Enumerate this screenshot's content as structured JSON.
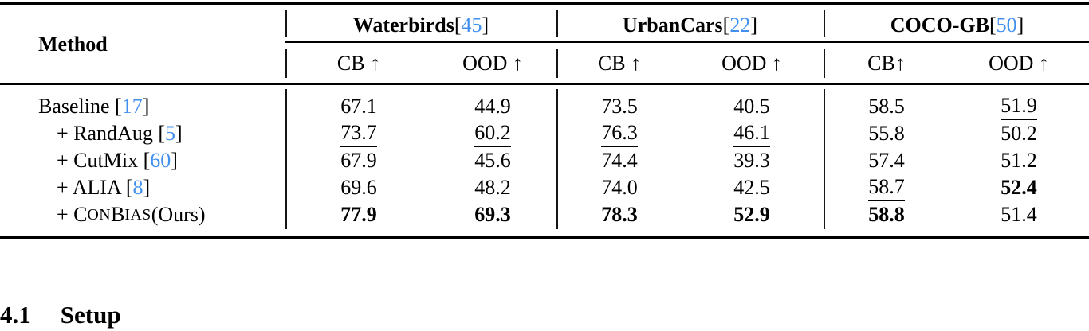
{
  "colors": {
    "cite": "#4190f0"
  },
  "table": {
    "header": {
      "method_label": "Method",
      "groups": [
        {
          "name": "Waterbirds",
          "cite": "45",
          "segments": [
            {
              "t": "Waterbirds ",
              "s": "bold"
            },
            {
              "t": "[",
              "s": "plain"
            },
            {
              "t": "45",
              "s": "cite"
            },
            {
              "t": "]",
              "s": "plain"
            }
          ]
        },
        {
          "name": "UrbanCars",
          "cite": "22",
          "segments": [
            {
              "t": "UrbanCars ",
              "s": "bold"
            },
            {
              "t": "[",
              "s": "plain"
            },
            {
              "t": "22",
              "s": "cite"
            },
            {
              "t": "]",
              "s": "plain"
            }
          ]
        },
        {
          "name": "COCO-GB",
          "cite": "50",
          "segments": [
            {
              "t": "COCO-GB ",
              "s": "bold"
            },
            {
              "t": "[",
              "s": "plain"
            },
            {
              "t": "50",
              "s": "cite"
            },
            {
              "t": "]",
              "s": "plain"
            }
          ]
        }
      ],
      "subheaders": [
        "CB ↑",
        "OOD ↑",
        "CB ↑",
        "OOD ↑",
        "CB↑",
        "OOD ↑"
      ]
    },
    "rows": [
      {
        "method": "Baseline [17]",
        "indent": false,
        "label_segments": [
          {
            "t": "Baseline [",
            "s": "plain"
          },
          {
            "t": "17",
            "s": "cite"
          },
          {
            "t": "]",
            "s": "plain"
          }
        ],
        "cells": [
          {
            "v": "67.1",
            "e": "none"
          },
          {
            "v": "44.9",
            "e": "none"
          },
          {
            "v": "73.5",
            "e": "none"
          },
          {
            "v": "40.5",
            "e": "none"
          },
          {
            "v": "58.5",
            "e": "none"
          },
          {
            "v": "51.9",
            "e": "underline"
          }
        ]
      },
      {
        "method": "+ RandAug [5]",
        "indent": true,
        "label_segments": [
          {
            "t": "+ RandAug [",
            "s": "plain"
          },
          {
            "t": "5",
            "s": "cite"
          },
          {
            "t": "]",
            "s": "plain"
          }
        ],
        "cells": [
          {
            "v": "73.7",
            "e": "underline"
          },
          {
            "v": "60.2",
            "e": "underline"
          },
          {
            "v": "76.3",
            "e": "underline"
          },
          {
            "v": "46.1",
            "e": "underline"
          },
          {
            "v": "55.8",
            "e": "none"
          },
          {
            "v": "50.2",
            "e": "none"
          }
        ]
      },
      {
        "method": "+ CutMix [60]",
        "indent": true,
        "label_segments": [
          {
            "t": "+ CutMix [",
            "s": "plain"
          },
          {
            "t": "60",
            "s": "cite"
          },
          {
            "t": "]",
            "s": "plain"
          }
        ],
        "cells": [
          {
            "v": "67.9",
            "e": "none"
          },
          {
            "v": "45.6",
            "e": "none"
          },
          {
            "v": "74.4",
            "e": "none"
          },
          {
            "v": "39.3",
            "e": "none"
          },
          {
            "v": "57.4",
            "e": "none"
          },
          {
            "v": "51.2",
            "e": "none"
          }
        ]
      },
      {
        "method": "+ ALIA [8]",
        "indent": true,
        "label_segments": [
          {
            "t": "+ ALIA [",
            "s": "plain"
          },
          {
            "t": "8",
            "s": "cite"
          },
          {
            "t": "]",
            "s": "plain"
          }
        ],
        "cells": [
          {
            "v": "69.6",
            "e": "none"
          },
          {
            "v": "48.2",
            "e": "none"
          },
          {
            "v": "74.0",
            "e": "none"
          },
          {
            "v": "42.5",
            "e": "none"
          },
          {
            "v": "58.7",
            "e": "underline"
          },
          {
            "v": "52.4",
            "e": "bold"
          }
        ]
      },
      {
        "method": "+ ConBias (Ours)",
        "indent": true,
        "label_segments": [
          {
            "t": "+ C",
            "s": "plain"
          },
          {
            "t": "ON",
            "s": "smallcap"
          },
          {
            "t": "B",
            "s": "plain"
          },
          {
            "t": "IAS",
            "s": "smallcap"
          },
          {
            "t": " (Ours)",
            "s": "plain"
          }
        ],
        "cells": [
          {
            "v": "77.9",
            "e": "bold"
          },
          {
            "v": "69.3",
            "e": "bold"
          },
          {
            "v": "78.3",
            "e": "bold"
          },
          {
            "v": "52.9",
            "e": "bold"
          },
          {
            "v": "58.8",
            "e": "bold"
          },
          {
            "v": "51.4",
            "e": "none"
          }
        ]
      }
    ]
  },
  "section_heading": {
    "number": "4.1",
    "title": "Setup"
  }
}
